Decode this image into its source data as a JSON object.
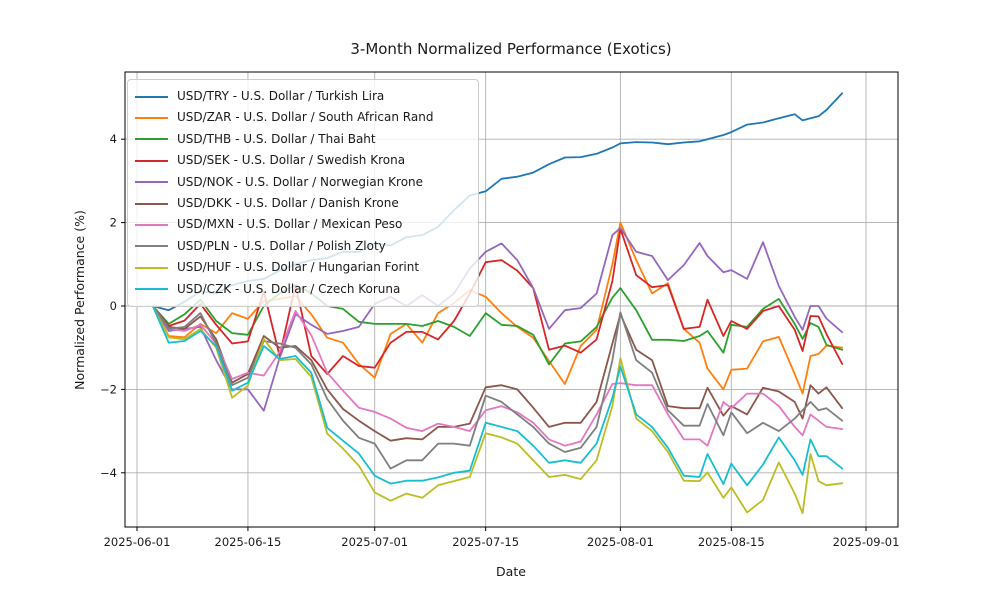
{
  "figure": {
    "title": "3-Month Normalized Performance (Exotics)"
  },
  "axes": {
    "xlabel": "Date",
    "ylabel": "Normalized Performance (%)",
    "x_tick_labels": [
      "2025-06-01",
      "2025-06-15",
      "2025-07-01",
      "2025-07-15",
      "2025-08-01",
      "2025-08-15",
      "2025-09-01"
    ],
    "y_tick_labels": [
      "4",
      "2",
      "0",
      "−2",
      "−4"
    ],
    "grid": true
  },
  "legend": {
    "position": "upper left"
  },
  "chart_data": {
    "type": "line",
    "title": "3-Month Normalized Performance (Exotics)",
    "xlabel": "Date",
    "ylabel": "Normalized Performance (%)",
    "ylim": [
      -5.3,
      5.6
    ],
    "xlim": [
      "2025-05-30",
      "2025-09-05"
    ],
    "grid": true,
    "legend_position": "upper left",
    "x_ticks": [
      "2025-06-01",
      "2025-06-15",
      "2025-07-01",
      "2025-07-15",
      "2025-08-01",
      "2025-08-15",
      "2025-09-01"
    ],
    "y_ticks": [
      4,
      2,
      0,
      -2,
      -4
    ],
    "x": [
      "2025-06-03",
      "2025-06-05",
      "2025-06-07",
      "2025-06-09",
      "2025-06-11",
      "2025-06-13",
      "2025-06-15",
      "2025-06-17",
      "2025-06-19",
      "2025-06-21",
      "2025-06-23",
      "2025-06-25",
      "2025-06-27",
      "2025-06-29",
      "2025-07-01",
      "2025-07-03",
      "2025-07-05",
      "2025-07-07",
      "2025-07-09",
      "2025-07-11",
      "2025-07-13",
      "2025-07-15",
      "2025-07-17",
      "2025-07-19",
      "2025-07-21",
      "2025-07-23",
      "2025-07-25",
      "2025-07-27",
      "2025-07-29",
      "2025-07-31",
      "2025-08-01",
      "2025-08-03",
      "2025-08-05",
      "2025-08-07",
      "2025-08-09",
      "2025-08-11",
      "2025-08-12",
      "2025-08-14",
      "2025-08-15",
      "2025-08-17",
      "2025-08-19",
      "2025-08-21",
      "2025-08-23",
      "2025-08-24",
      "2025-08-25",
      "2025-08-26",
      "2025-08-27",
      "2025-08-29"
    ],
    "series": [
      {
        "name": "usd-try",
        "label": "USD/TRY - U.S. Dollar / Turkish Lira",
        "color": "#1f77b4",
        "values": [
          0,
          -0.1,
          0.1,
          0.35,
          0.3,
          0.5,
          0.6,
          0.65,
          0.85,
          1.0,
          1.1,
          1.15,
          1.3,
          1.3,
          1.5,
          1.45,
          1.65,
          1.7,
          1.9,
          2.3,
          2.65,
          2.75,
          3.05,
          3.1,
          3.2,
          3.4,
          3.56,
          3.57,
          3.65,
          3.8,
          3.9,
          3.93,
          3.92,
          3.88,
          3.92,
          3.95,
          4.0,
          4.1,
          4.17,
          4.35,
          4.4,
          4.5,
          4.6,
          4.45,
          4.5,
          4.55,
          4.7,
          5.1
        ]
      },
      {
        "name": "usd-zar",
        "label": "USD/ZAR - U.S. Dollar / South African Rand",
        "color": "#ff7f0e",
        "values": [
          0,
          -0.72,
          -0.75,
          -0.43,
          -0.65,
          -0.17,
          -0.31,
          0.12,
          0.17,
          0.24,
          -0.2,
          -0.76,
          -0.88,
          -1.39,
          -1.72,
          -0.67,
          -0.43,
          -0.88,
          -0.17,
          0.07,
          0.38,
          0.22,
          -0.17,
          -0.5,
          -0.76,
          -1.32,
          -1.87,
          -0.96,
          -0.57,
          1.0,
          2.0,
          1.1,
          0.3,
          0.55,
          -0.55,
          -0.88,
          -1.5,
          -2.0,
          -1.53,
          -1.5,
          -0.85,
          -0.74,
          -1.63,
          -2.1,
          -1.2,
          -1.15,
          -0.95,
          -1.0
        ]
      },
      {
        "name": "usd-thb",
        "label": "USD/THB - U.S. Dollar / Thai Baht",
        "color": "#2ca02c",
        "values": [
          0,
          -0.43,
          -0.2,
          0.15,
          -0.36,
          -0.65,
          -0.69,
          0.0,
          0.3,
          0.5,
          0.31,
          0.0,
          -0.07,
          -0.38,
          -0.43,
          -0.43,
          -0.43,
          -0.48,
          -0.36,
          -0.5,
          -0.72,
          -0.17,
          -0.45,
          -0.48,
          -0.69,
          -1.4,
          -0.9,
          -0.85,
          -0.5,
          0.2,
          0.43,
          -0.1,
          -0.81,
          -0.81,
          -0.84,
          -0.72,
          -0.6,
          -1.12,
          -0.45,
          -0.5,
          -0.07,
          0.17,
          -0.43,
          -0.79,
          -0.41,
          -0.5,
          -0.93,
          -1.05
        ]
      },
      {
        "name": "usd-sek",
        "label": "USD/SEK - U.S. Dollar / Swedish Krona",
        "color": "#d62728",
        "values": [
          0,
          -0.48,
          -0.35,
          0.05,
          -0.45,
          -0.9,
          -0.85,
          0.35,
          -1.2,
          0.5,
          -1.2,
          -1.63,
          -1.2,
          -1.44,
          -1.48,
          -0.88,
          -0.62,
          -0.62,
          -0.8,
          -0.36,
          0.3,
          1.05,
          1.1,
          0.85,
          0.43,
          -1.05,
          -0.95,
          -1.12,
          -0.8,
          0.6,
          1.85,
          0.74,
          0.45,
          0.5,
          -0.55,
          -0.5,
          0.15,
          -0.72,
          -0.36,
          -0.55,
          -0.12,
          0.0,
          -0.57,
          -1.08,
          -0.24,
          -0.25,
          -0.67,
          -1.39
        ]
      },
      {
        "name": "usd-nok",
        "label": "USD/NOK - U.S. Dollar / Norwegian Krone",
        "color": "#9467bd",
        "values": [
          0,
          -0.6,
          -0.55,
          -0.5,
          -1.3,
          -2.0,
          -2.0,
          -2.51,
          -1.25,
          -0.2,
          -0.45,
          -0.67,
          -0.6,
          -0.5,
          0.05,
          0.22,
          0.0,
          0.26,
          0.0,
          0.3,
          0.9,
          1.3,
          1.5,
          1.1,
          0.43,
          -0.55,
          -0.1,
          -0.05,
          0.3,
          1.7,
          1.87,
          1.3,
          1.2,
          0.62,
          0.98,
          1.51,
          1.2,
          0.81,
          0.86,
          0.65,
          1.53,
          0.48,
          -0.26,
          -0.57,
          0.0,
          0.0,
          -0.3,
          -0.63
        ]
      },
      {
        "name": "usd-dkk",
        "label": "USD/DKK - U.S. Dollar / Danish Krone",
        "color": "#8c564b",
        "values": [
          0,
          -0.5,
          -0.55,
          -0.25,
          -0.8,
          -1.84,
          -1.63,
          -0.72,
          -1.0,
          -0.96,
          -1.3,
          -2.0,
          -2.47,
          -2.75,
          -3.0,
          -3.23,
          -3.17,
          -3.2,
          -2.9,
          -2.9,
          -2.82,
          -1.95,
          -1.9,
          -2.0,
          -2.44,
          -2.9,
          -2.8,
          -2.8,
          -2.3,
          -0.9,
          -0.2,
          -1.05,
          -1.3,
          -2.4,
          -2.45,
          -2.45,
          -1.96,
          -2.63,
          -2.4,
          -2.6,
          -1.96,
          -2.05,
          -2.3,
          -2.7,
          -1.9,
          -2.1,
          -1.95,
          -2.45
        ]
      },
      {
        "name": "usd-mxn",
        "label": "USD/MXN - U.S. Dollar / Mexican Peso",
        "color": "#e377c2",
        "values": [
          0,
          -0.55,
          -0.6,
          -0.45,
          -0.9,
          -1.75,
          -1.6,
          -1.67,
          -1.1,
          -0.12,
          -0.7,
          -1.6,
          -2.03,
          -2.44,
          -2.54,
          -2.7,
          -2.92,
          -3.0,
          -2.82,
          -2.9,
          -3.0,
          -2.5,
          -2.4,
          -2.55,
          -2.8,
          -3.2,
          -3.35,
          -3.25,
          -2.6,
          -1.87,
          -1.85,
          -1.9,
          -1.9,
          -2.6,
          -3.2,
          -3.2,
          -3.35,
          -2.3,
          -2.45,
          -2.1,
          -2.1,
          -2.4,
          -2.9,
          -3.1,
          -2.6,
          -2.75,
          -2.9,
          -2.95
        ]
      },
      {
        "name": "usd-pln",
        "label": "USD/PLN - U.S. Dollar / Polish Zloty",
        "color": "#7f7f7f",
        "values": [
          0,
          -0.55,
          -0.5,
          -0.17,
          -0.9,
          -1.9,
          -1.72,
          -0.84,
          -0.9,
          -1.0,
          -1.4,
          -2.23,
          -2.75,
          -3.16,
          -3.3,
          -3.9,
          -3.7,
          -3.7,
          -3.3,
          -3.3,
          -3.35,
          -2.15,
          -2.3,
          -2.6,
          -2.9,
          -3.3,
          -3.5,
          -3.4,
          -2.9,
          -1.3,
          -0.15,
          -1.3,
          -1.6,
          -2.5,
          -2.87,
          -2.87,
          -2.35,
          -3.1,
          -2.55,
          -3.05,
          -2.8,
          -3.0,
          -2.7,
          -2.5,
          -2.3,
          -2.5,
          -2.45,
          -2.75
        ]
      },
      {
        "name": "usd-huf",
        "label": "USD/HUF - U.S. Dollar / Hungarian Forint",
        "color": "#bcbd22",
        "values": [
          0,
          -0.75,
          -0.8,
          -0.55,
          -1.0,
          -2.2,
          -1.91,
          -0.79,
          -1.3,
          -1.27,
          -1.7,
          -3.06,
          -3.42,
          -3.83,
          -4.47,
          -4.67,
          -4.5,
          -4.6,
          -4.3,
          -4.2,
          -4.1,
          -3.05,
          -3.15,
          -3.3,
          -3.7,
          -4.1,
          -4.05,
          -4.15,
          -3.7,
          -2.4,
          -1.25,
          -2.7,
          -3.0,
          -3.5,
          -4.19,
          -4.2,
          -3.99,
          -4.6,
          -4.35,
          -4.95,
          -4.65,
          -3.75,
          -4.5,
          -4.97,
          -3.55,
          -4.2,
          -4.3,
          -4.25
        ]
      },
      {
        "name": "usd-czk",
        "label": "USD/CZK - U.S. Dollar / Czech Koruna",
        "color": "#17becf",
        "values": [
          0,
          -0.88,
          -0.84,
          -0.6,
          -0.96,
          -2.03,
          -1.84,
          -0.96,
          -1.27,
          -1.2,
          -1.6,
          -2.92,
          -3.23,
          -3.54,
          -4.07,
          -4.26,
          -4.19,
          -4.19,
          -4.11,
          -4.0,
          -3.95,
          -2.8,
          -2.9,
          -3.0,
          -3.35,
          -3.76,
          -3.7,
          -3.76,
          -3.3,
          -2.2,
          -1.45,
          -2.6,
          -2.9,
          -3.4,
          -4.07,
          -4.1,
          -3.55,
          -4.27,
          -3.78,
          -4.3,
          -3.8,
          -3.15,
          -3.7,
          -4.05,
          -3.2,
          -3.6,
          -3.6,
          -3.9
        ]
      }
    ]
  }
}
